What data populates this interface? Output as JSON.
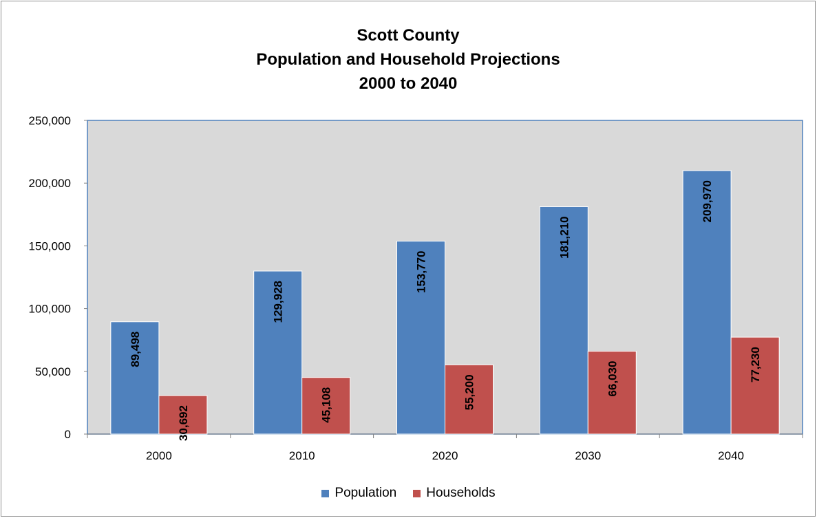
{
  "chart_data": {
    "type": "bar",
    "title_lines": [
      "Scott County",
      "Population and Household Projections",
      "2000 to 2040"
    ],
    "categories": [
      "2000",
      "2010",
      "2020",
      "2030",
      "2040"
    ],
    "series": [
      {
        "name": "Population",
        "color": "#4f81bd",
        "values": [
          89498,
          129928,
          153770,
          181210,
          209970
        ],
        "labels": [
          "89,498",
          "129,928",
          "153,770",
          "181,210",
          "209,970"
        ]
      },
      {
        "name": "Households",
        "color": "#c0504d",
        "values": [
          30692,
          45108,
          55200,
          66030,
          77230
        ],
        "labels": [
          "30,692",
          "45,108",
          "55,200",
          "66,030",
          "77,230"
        ]
      }
    ],
    "ylim": [
      0,
      250000
    ],
    "yticks": [
      0,
      50000,
      100000,
      150000,
      200000,
      250000
    ],
    "ytick_labels": [
      "0",
      "50,000",
      "100,000",
      "150,000",
      "200,000",
      "250,000"
    ],
    "plot_background": "#d9d9d9",
    "plot_border_color": "#4f81bd",
    "legend_position": "bottom",
    "grid": false
  }
}
